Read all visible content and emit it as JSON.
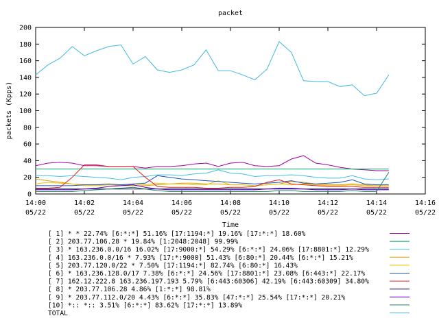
{
  "chart_data": {
    "type": "line",
    "title": "packet",
    "xlabel": "Time",
    "ylabel": "packets (Kpps)",
    "ylim": [
      0,
      200
    ],
    "yticks": [
      0,
      20,
      40,
      60,
      80,
      100,
      120,
      140,
      160,
      180,
      200
    ],
    "xlim": [
      0,
      16
    ],
    "xticks": [
      {
        "pos": 0,
        "time": "14:00",
        "date": "05/22"
      },
      {
        "pos": 2,
        "time": "14:02",
        "date": "05/22"
      },
      {
        "pos": 4,
        "time": "14:04",
        "date": "05/22"
      },
      {
        "pos": 6,
        "time": "14:06",
        "date": "05/22"
      },
      {
        "pos": 8,
        "time": "14:08",
        "date": "05/22"
      },
      {
        "pos": 10,
        "time": "14:10",
        "date": "05/22"
      },
      {
        "pos": 12,
        "time": "14:12",
        "date": "05/22"
      },
      {
        "pos": 14,
        "time": "14:14",
        "date": "05/22"
      },
      {
        "pos": 16,
        "time": "14:16",
        "date": "05/22"
      }
    ],
    "grid": false,
    "legend_position": "bottom",
    "x": [
      0,
      0.5,
      1,
      1.5,
      2,
      2.5,
      3,
      3.5,
      4,
      4.5,
      5,
      5.5,
      6,
      6.5,
      7,
      7.5,
      8,
      8.5,
      9,
      9.5,
      10,
      10.5,
      11,
      11.5,
      12,
      12.5,
      13,
      13.5,
      14,
      14.5
    ],
    "series": [
      {
        "name": "[ 1] * * 22.74%  [6:*:*] 51.16% [17:1194:*] 19.16% [17:*:*] 18.60%",
        "color": "#a000a0",
        "values": [
          34,
          37,
          38,
          37,
          34,
          34,
          33,
          33,
          33,
          31,
          33,
          33,
          34,
          36,
          37,
          33,
          37,
          38,
          34,
          33,
          34,
          42,
          46,
          37,
          35,
          32,
          30,
          29,
          28,
          28
        ]
      },
      {
        "name": "[ 2] 203.77.106.28 * 19.84%  [1:2048:2048] 99.99%",
        "color": "#00a060",
        "values": [
          30,
          30,
          30,
          30,
          30,
          30,
          30,
          30,
          30,
          30,
          30,
          30,
          30,
          30,
          30,
          30,
          30,
          30,
          30,
          30,
          30,
          30,
          30,
          30,
          30,
          30,
          30,
          30,
          30,
          30
        ]
      },
      {
        "name": "[ 3] * 163.236.0.0/16 16.02%  [17:9000:*] 54.29% [6:*:*] 24.06% [17:8801:*] 12.29%",
        "color": "#40c0e0",
        "values": [
          22,
          22,
          21,
          22,
          21,
          20,
          19,
          17,
          20,
          21,
          23,
          23,
          22,
          24,
          25,
          29,
          25,
          24,
          21,
          22,
          22,
          23,
          22,
          20,
          19,
          19,
          22,
          18,
          17,
          18
        ]
      },
      {
        "name": "[ 4] 163.236.0.0/16 * 7.93%  [17:*:9000] 51.43% [6:80:*] 20.44% [6:*:*] 15.21%",
        "color": "#e0a000",
        "values": [
          18,
          16,
          14,
          12,
          11,
          11,
          11,
          10,
          10,
          10,
          11,
          12,
          13,
          13,
          12,
          12,
          11,
          11,
          10,
          11,
          12,
          15,
          14,
          12,
          11,
          11,
          12,
          11,
          10,
          10
        ]
      },
      {
        "name": "[ 5] 203.77.120.0/22 * 7.50%  [17:1194:*] 82.74% [6:80:*] 16.43%",
        "color": "#f0c000",
        "values": [
          12,
          14,
          13,
          12,
          10,
          10,
          11,
          11,
          12,
          11,
          13,
          12,
          12,
          11,
          11,
          16,
          11,
          11,
          10,
          11,
          12,
          11,
          12,
          11,
          10,
          10,
          11,
          10,
          10,
          10
        ]
      },
      {
        "name": "[ 6] * 163.236.128.0/17 7.38%  [6:*:*] 24.56% [17:8801:*] 23.08% [6:443:*] 22.17%",
        "color": "#2050c0",
        "values": [
          10,
          10,
          10,
          10,
          11,
          11,
          12,
          11,
          12,
          13,
          22,
          20,
          18,
          17,
          16,
          15,
          14,
          13,
          12,
          13,
          14,
          16,
          13,
          12,
          13,
          14,
          17,
          12,
          11,
          11
        ]
      },
      {
        "name": "[ 7] 162.12.222.8 163.236.197.193 5.79%  [6:443:60306] 42.19% [6:443:60309] 34.80%",
        "color": "#e02020",
        "values": [
          7,
          7,
          8,
          20,
          35,
          35,
          33,
          33,
          33,
          20,
          9,
          8,
          8,
          8,
          7,
          7,
          8,
          8,
          9,
          14,
          17,
          12,
          11,
          10,
          9,
          9,
          9,
          8,
          8,
          8
        ]
      },
      {
        "name": "[ 8] * 203.77.106.28 4.86%  [1:*:*] 98.81%",
        "color": "#000060",
        "values": [
          6,
          6,
          6,
          6,
          6,
          6,
          6,
          6,
          6,
          6,
          6,
          6,
          6,
          6,
          6,
          6,
          6,
          6,
          6,
          6,
          6,
          6,
          6,
          6,
          6,
          6,
          6,
          6,
          6,
          6
        ]
      },
      {
        "name": "[ 9] * 203.77.112.0/20 4.43%  [6:*:*] 35.83% [47:*:*] 25.54% [17:*:*] 20.21%",
        "color": "#6000c0",
        "values": [
          5,
          5,
          5,
          5,
          6,
          7,
          9,
          10,
          11,
          8,
          6,
          5,
          5,
          5,
          5,
          5,
          5,
          5,
          5,
          6,
          7,
          7,
          6,
          5,
          5,
          5,
          6,
          5,
          5,
          5
        ]
      },
      {
        "name": "[10] *:: *:: 3.51%  [6:*:*] 83.62% [17:*:*] 13.89%",
        "color": "#208060",
        "values": [
          3,
          3,
          3,
          3,
          4,
          5,
          6,
          7,
          8,
          6,
          4,
          3,
          3,
          3,
          3,
          3,
          3,
          3,
          3,
          3,
          4,
          4,
          3,
          3,
          3,
          3,
          4,
          3,
          3,
          26
        ]
      },
      {
        "name": "TOTAL",
        "color": "#40b8e0",
        "values": [
          143,
          155,
          163,
          177,
          166,
          172,
          177,
          179,
          156,
          165,
          149,
          146,
          149,
          155,
          173,
          148,
          148,
          143,
          137,
          150,
          183,
          170,
          136,
          135,
          135,
          129,
          131,
          118,
          121,
          143
        ]
      }
    ]
  }
}
